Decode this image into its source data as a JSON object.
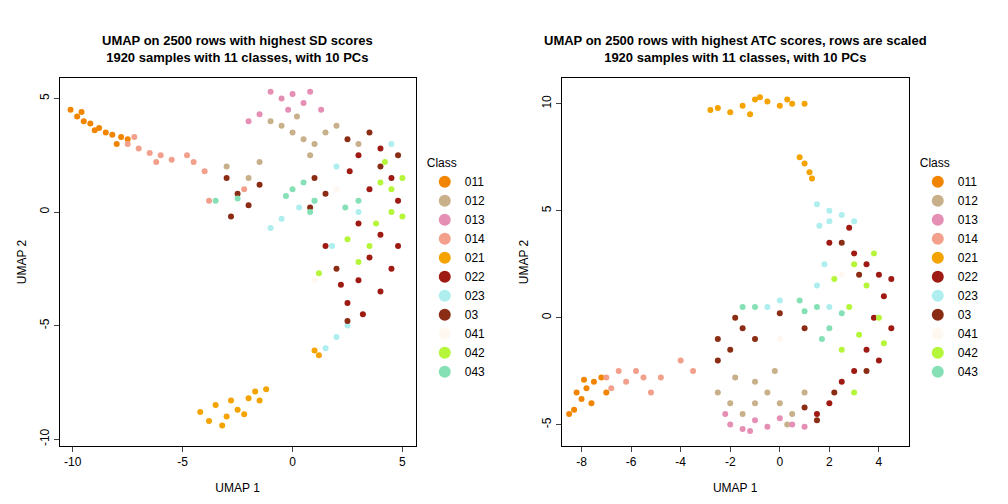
{
  "chart_data": [
    {
      "type": "scatter",
      "title": "UMAP on 2500 rows with highest SD scores\n1920 samples with 11 classes, with 10 PCs",
      "x_label": "UMAP 1",
      "y_label": "UMAP 2",
      "xlim": [
        -10.6,
        5.6
      ],
      "ylim": [
        -10.3,
        5.9
      ],
      "xticks": [
        -10,
        -5,
        0,
        5
      ],
      "yticks": [
        -10,
        -5,
        0,
        5
      ],
      "grid": false,
      "legend": "right",
      "legend_title": "Class",
      "marker": "circle",
      "series": [
        {
          "name": "011",
          "color": "#f28500",
          "x": [
            -10.1,
            -9.8,
            -9.5,
            -9.2,
            -8.8,
            -8.5,
            -8.2,
            -7.8,
            -9.6,
            -9.0,
            -8.0,
            -7.5
          ],
          "y": [
            4.5,
            4.2,
            4.0,
            3.9,
            3.7,
            3.5,
            3.4,
            3.3,
            4.4,
            3.6,
            3.0,
            3.2
          ]
        },
        {
          "name": "012",
          "color": "#c8b08a",
          "x": [
            -1,
            0,
            0.5,
            1,
            1.5,
            0.2,
            -0.5,
            2,
            3,
            -2,
            -1.5,
            -3,
            0.8
          ],
          "y": [
            4,
            3.5,
            3.2,
            3.0,
            3.5,
            4.2,
            3.8,
            3.8,
            3,
            1.5,
            2.2,
            2.0,
            2.5
          ]
        },
        {
          "name": "013",
          "color": "#e58fb5",
          "x": [
            -1,
            -0.5,
            0,
            0.5,
            -1.5,
            1.3,
            0.8,
            -2,
            -0.2
          ],
          "y": [
            5.3,
            5,
            5.2,
            4.8,
            4.3,
            4.5,
            5.3,
            4.0,
            4.5
          ]
        },
        {
          "name": "014",
          "color": "#f2a08c",
          "x": [
            -7.5,
            -7,
            -6.5,
            -6,
            -5.5,
            -7.2,
            -6.2,
            -4.5,
            -4,
            -3.8,
            -2.2,
            -4.8
          ],
          "y": [
            3.0,
            2.8,
            2.6,
            2.5,
            2.3,
            3.3,
            2.2,
            2.2,
            1.8,
            0.5,
            1.0,
            2.5
          ]
        },
        {
          "name": "021",
          "color": "#f5a300",
          "x": [
            -4.2,
            -3.8,
            -3.5,
            -3.0,
            -2.8,
            -2.5,
            -2,
            -1.7,
            -1.2,
            -3.2,
            -2.2,
            -1.5,
            1.0,
            1.2
          ],
          "y": [
            -8.8,
            -9.2,
            -8.5,
            -9.0,
            -8.3,
            -8.7,
            -8.2,
            -7.9,
            -7.8,
            -9.4,
            -8.9,
            -8.3,
            -6.1,
            -6.3
          ]
        },
        {
          "name": "022",
          "color": "#9e1a12",
          "x": [
            3,
            4,
            4.5,
            3.5,
            4.8,
            3.0,
            4,
            3.5,
            4.5,
            3,
            4,
            2.5,
            3.2,
            2.2,
            4.8,
            2.6,
            1.5
          ],
          "y": [
            2.5,
            2.8,
            1.5,
            1.0,
            0.5,
            -0.5,
            -1,
            -2,
            -2.5,
            -3,
            -3.5,
            -4,
            -4.5,
            -3.2,
            -1.5,
            1.8,
            -1.5
          ]
        },
        {
          "name": "023",
          "color": "#aeeeee",
          "x": [
            2,
            2.5,
            1.5,
            1,
            0.3,
            -0.5,
            -1,
            2,
            3,
            1.8,
            4.5
          ],
          "y": [
            -5.5,
            -5,
            -6,
            0.5,
            0.2,
            -0.3,
            -0.7,
            2,
            0,
            -1.5,
            3
          ]
        },
        {
          "name": "03",
          "color": "#8b2c14",
          "x": [
            -3,
            -2.5,
            -2,
            -2.8,
            -1.5,
            1,
            1.5,
            2.5,
            3.5,
            4,
            4.8,
            2,
            2.5,
            0.8
          ],
          "y": [
            1.5,
            0.8,
            0.3,
            -0.2,
            1.2,
            1.5,
            0.8,
            3.2,
            3.5,
            2,
            2.5,
            -2.5,
            -4.8,
            0.2
          ]
        },
        {
          "name": "041",
          "color": "#fff8f0",
          "x": [
            2,
            1
          ],
          "y": [
            1,
            -3
          ]
        },
        {
          "name": "042",
          "color": "#b5f53a",
          "x": [
            4.5,
            5,
            3.8,
            3.5,
            4.5,
            3,
            2.5,
            4.2,
            5,
            1.2,
            4
          ],
          "y": [
            1,
            1.5,
            -0.5,
            -1.5,
            0,
            -2.2,
            -1.2,
            2.2,
            -0.2,
            -2.7,
            1.3
          ]
        },
        {
          "name": "043",
          "color": "#85e0b5",
          "x": [
            0.5,
            0,
            1,
            -2.5,
            -3.5,
            0.8,
            3,
            2.4,
            -0.3
          ],
          "y": [
            1.3,
            1,
            0.5,
            0.6,
            0.5,
            0,
            0.5,
            0.2,
            0.7
          ]
        }
      ]
    },
    {
      "type": "scatter",
      "title": "UMAP on 2500 rows with highest ATC scores, rows are scaled\n1920 samples with 11 classes, with 10 PCs",
      "x_label": "UMAP 1",
      "y_label": "UMAP 2",
      "xlim": [
        -8.8,
        5.2
      ],
      "ylim": [
        -6.0,
        11.2
      ],
      "xticks": [
        -8,
        -6,
        -4,
        -2,
        0,
        2,
        4
      ],
      "yticks": [
        -5,
        0,
        5,
        10
      ],
      "grid": false,
      "legend": "right",
      "legend_title": "Class",
      "marker": "circle",
      "series": [
        {
          "name": "011",
          "color": "#f28500",
          "x": [
            -8.3,
            -8,
            -7.8,
            -7.5,
            -7.2,
            -8.2,
            -7.6,
            -7,
            -8.5,
            -7.9
          ],
          "y": [
            -4.3,
            -3.8,
            -3.3,
            -3,
            -2.8,
            -3.5,
            -4,
            -3.5,
            -4.5,
            -2.9
          ]
        },
        {
          "name": "012",
          "color": "#c8b08a",
          "x": [
            -2,
            -1.5,
            -1,
            -0.5,
            0,
            0.5,
            -1,
            -1.8,
            -2.5,
            1,
            -0.2,
            0.3
          ],
          "y": [
            -4,
            -4.5,
            -4,
            -3.5,
            -4,
            -4.5,
            -3,
            -2.8,
            -3.5,
            -3.5,
            -2.5,
            -5.0
          ]
        },
        {
          "name": "013",
          "color": "#e58fb5",
          "x": [
            -2,
            -1.5,
            -1,
            -0.5,
            0,
            0.5,
            -2.2,
            1,
            -1.2
          ],
          "y": [
            -5,
            -5.2,
            -4.8,
            -5.1,
            -4.7,
            -5.0,
            -4.5,
            -5.1,
            -5.3
          ]
        },
        {
          "name": "014",
          "color": "#f2a08c",
          "x": [
            -7,
            -6.5,
            -6.2,
            -5.8,
            -5.5,
            -4.8,
            -4,
            -3.5,
            -6.8,
            -5.2
          ],
          "y": [
            -2.8,
            -2.5,
            -3,
            -2.5,
            -2.8,
            -2.8,
            -2,
            -2.5,
            -3.3,
            -3.5
          ]
        },
        {
          "name": "021",
          "color": "#f5a300",
          "x": [
            -2.5,
            -2,
            -1.5,
            -1,
            -0.5,
            0,
            0.5,
            -1.2,
            -0.8,
            1,
            -2.8,
            0.3,
            0.8,
            1.0,
            1.2,
            1.3
          ],
          "y": [
            9.8,
            9.6,
            9.9,
            10.2,
            10.1,
            9.9,
            10,
            9.5,
            10.3,
            10.0,
            9.7,
            10.2,
            7.5,
            7.2,
            6.8,
            6.5
          ]
        },
        {
          "name": "022",
          "color": "#9e1a12",
          "x": [
            2,
            3,
            3.5,
            4,
            4.2,
            3.8,
            4.5,
            3.5,
            3,
            2.5,
            2,
            1.5,
            4,
            2.8,
            4.5
          ],
          "y": [
            3.5,
            3,
            2.5,
            2,
            1,
            0,
            -0.5,
            -1.5,
            -2.5,
            -3,
            -4,
            -4.5,
            -2,
            4.2,
            1.8
          ]
        },
        {
          "name": "023",
          "color": "#aeeeee",
          "x": [
            1.5,
            2,
            2.5,
            1.6,
            2,
            1.5,
            2,
            1.8,
            -0.5,
            0,
            3
          ],
          "y": [
            5.3,
            5,
            4.8,
            4.3,
            4.5,
            1.5,
            0.5,
            2.5,
            0.5,
            0.8,
            4.5
          ]
        },
        {
          "name": "03",
          "color": "#8b2c14",
          "x": [
            1.5,
            1,
            -2.5,
            -2,
            -1.8,
            -1.5,
            0,
            1,
            -2.5,
            -1,
            2.5,
            3.2,
            3.5,
            2.2
          ],
          "y": [
            -4.8,
            -4.2,
            -1,
            -1.5,
            0,
            -0.5,
            0.2,
            -0.5,
            -2,
            -1,
            3.5,
            2,
            -2.5,
            -3.5
          ]
        },
        {
          "name": "041",
          "color": "#fff8f0",
          "x": [
            2.5,
            0
          ],
          "y": [
            2,
            -1
          ]
        },
        {
          "name": "042",
          "color": "#b5f53a",
          "x": [
            3,
            3.5,
            2.8,
            3.2,
            4,
            2.5,
            3.8,
            2.2,
            4.2,
            3
          ],
          "y": [
            2.5,
            1.5,
            0.5,
            -0.8,
            0,
            -1.5,
            3,
            1.8,
            -1.2,
            -3.5
          ]
        },
        {
          "name": "043",
          "color": "#85e0b5",
          "x": [
            1.5,
            1,
            2,
            0.8,
            1.7,
            -1.5,
            -1,
            2.5
          ],
          "y": [
            0.5,
            0.3,
            -0.5,
            0.8,
            -1,
            0.5,
            0.5,
            0.2
          ]
        }
      ]
    }
  ]
}
